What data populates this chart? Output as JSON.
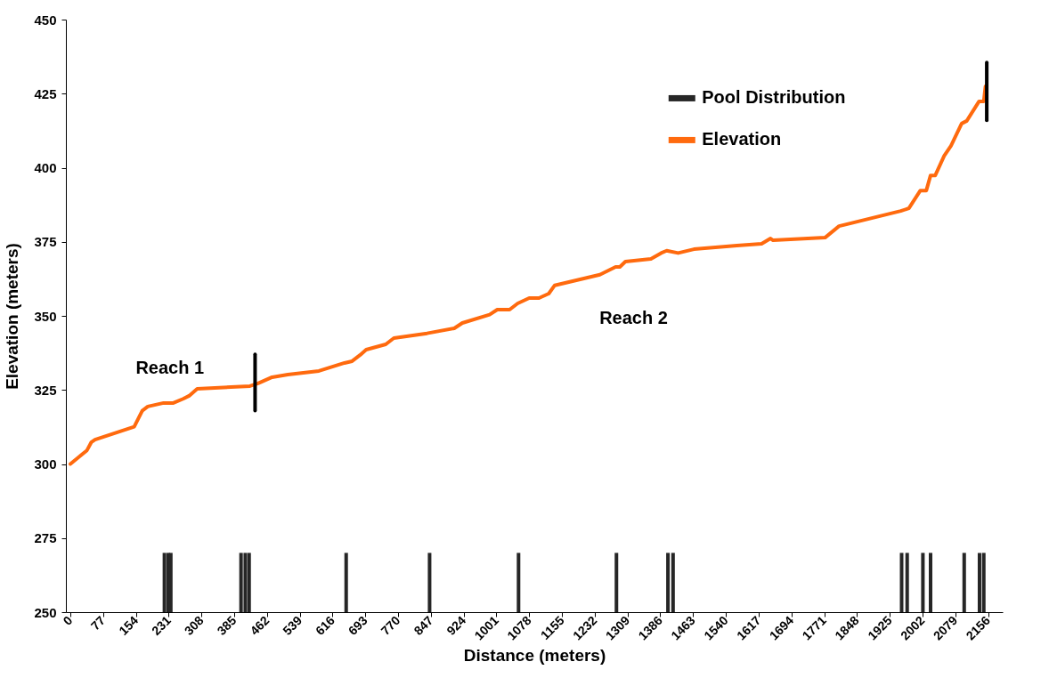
{
  "chart_data": {
    "type": "line",
    "xlabel": "Distance (meters)",
    "ylabel": "Elevation  (meters)",
    "xlim": [
      0,
      2180
    ],
    "xticks": [
      0,
      77,
      154,
      231,
      308,
      385,
      462,
      539,
      616,
      693,
      770,
      847,
      924,
      1001,
      1078,
      1155,
      1232,
      1309,
      1386,
      1463,
      1540,
      1617,
      1694,
      1771,
      1848,
      1925,
      2002,
      2079,
      2156
    ],
    "ylim": [
      250,
      450
    ],
    "yticks": [
      250,
      275,
      300,
      325,
      350,
      375,
      400,
      425,
      450
    ],
    "grid": false,
    "legend": "top right",
    "marker": "none",
    "line_style": "solid",
    "annotations": [
      "Reach 1",
      "Reach 2"
    ],
    "series": [
      {
        "name": "Pool Distribution",
        "type": "bar",
        "color": "#262626",
        "x": [
          221,
          230,
          236,
          401,
          411,
          420,
          648,
          844,
          1053,
          1283,
          1404,
          1416,
          1953,
          1966,
          2003,
          2021,
          2100,
          2136,
          2146
        ],
        "values": [
          270,
          270,
          270,
          270,
          270,
          270,
          270,
          270,
          270,
          270,
          270,
          270,
          270,
          270,
          270,
          270,
          270,
          270,
          270
        ]
      },
      {
        "name": "Elevation",
        "color": "#ff6a0e",
        "x": [
          0,
          21,
          39,
          49,
          58,
          150,
          169,
          182,
          219,
          242,
          265,
          279,
          298,
          422,
          441,
          474,
          511,
          584,
          644,
          662,
          681,
          695,
          741,
          760,
          838,
          902,
          921,
          985,
          1003,
          1032,
          1051,
          1078,
          1101,
          1124,
          1138,
          1244,
          1281,
          1291,
          1304,
          1364,
          1388,
          1401,
          1428,
          1465,
          1566,
          1624,
          1645,
          1651,
          1773,
          1806,
          1951,
          1970,
          1997,
          2011,
          2021,
          2032,
          2053,
          2069,
          2094,
          2106,
          2135,
          2146,
          2150
        ],
        "values": [
          300,
          302.5,
          304.6,
          307.3,
          308.2,
          312.6,
          318,
          319.4,
          320.6,
          320.6,
          322,
          323,
          325.4,
          326.3,
          327.2,
          329.3,
          330.2,
          331.4,
          334.1,
          334.7,
          336.8,
          338.6,
          340.4,
          342.5,
          344.1,
          345.8,
          347.6,
          350.4,
          352.1,
          352.1,
          354.2,
          356,
          356,
          357.5,
          360.3,
          363.9,
          366.5,
          366.5,
          368.3,
          369.2,
          371.2,
          372,
          371.2,
          372.5,
          373.7,
          374.3,
          376.1,
          375.5,
          376.4,
          380.3,
          385.4,
          386.3,
          392.3,
          392.3,
          397.4,
          397.4,
          404,
          407.4,
          414.9,
          415.8,
          422.4,
          422.4,
          427.5
        ]
      },
      {
        "type": "line",
        "color": "#000000",
        "x": [
          434,
          434
        ],
        "values": [
          318,
          337
        ]
      },
      {
        "type": "line",
        "color": "#000000",
        "x": [
          2153,
          2153
        ],
        "values": [
          416,
          435.5
        ]
      }
    ]
  }
}
